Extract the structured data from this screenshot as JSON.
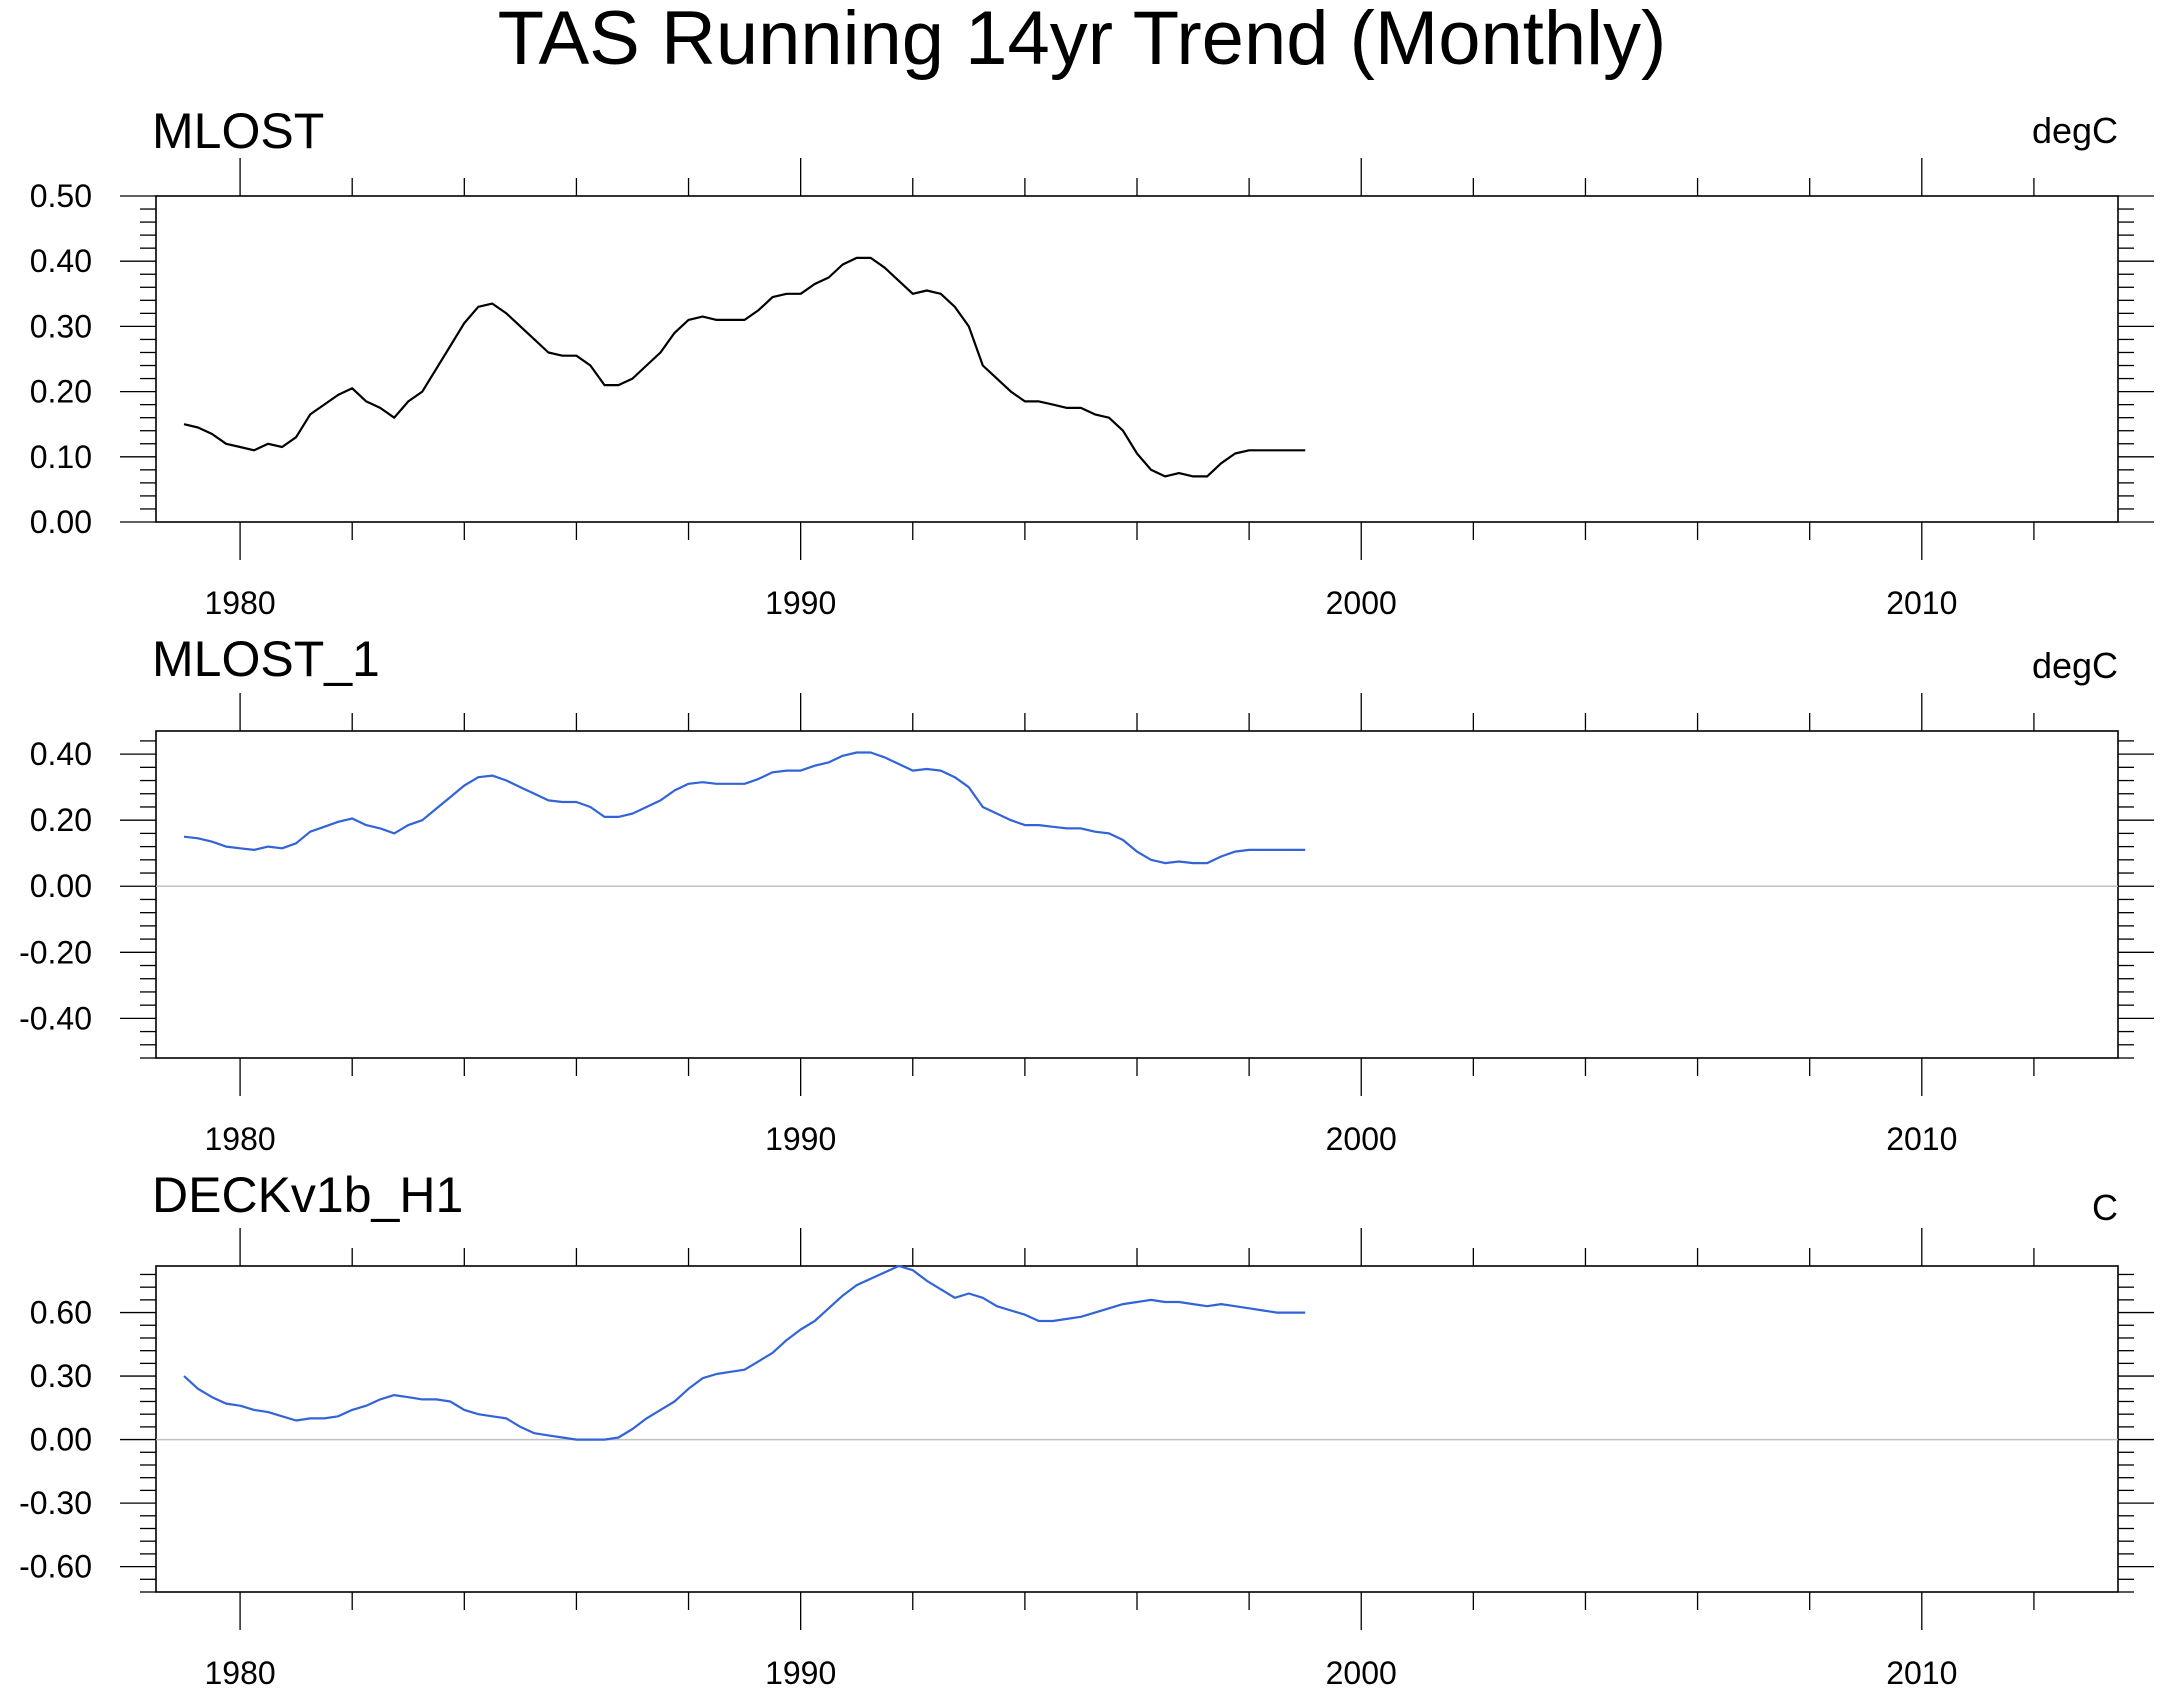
{
  "chart_data": {
    "title": "TAS Running 14yr Trend (Monthly)",
    "xlim": [
      1978.5,
      2013.5
    ],
    "x_ticks": [
      1980,
      1990,
      2000,
      2010
    ],
    "panels": [
      {
        "type": "line",
        "name": "MLOST",
        "units": "degC",
        "color": "#000000",
        "ylim": [
          0.0,
          0.5
        ],
        "y_ticks": [
          0.0,
          0.1,
          0.2,
          0.3,
          0.4,
          0.5
        ],
        "y_tick_labels": [
          "0.00",
          "0.10",
          "0.20",
          "0.30",
          "0.40",
          "0.50"
        ],
        "zero_line": false,
        "x": [
          1979.0,
          1979.25,
          1979.5,
          1979.75,
          1980.0,
          1980.25,
          1980.5,
          1980.75,
          1981.0,
          1981.25,
          1981.5,
          1981.75,
          1982.0,
          1982.25,
          1982.5,
          1982.75,
          1983.0,
          1983.25,
          1983.5,
          1983.75,
          1984.0,
          1984.25,
          1984.5,
          1984.75,
          1985.0,
          1985.25,
          1985.5,
          1985.75,
          1986.0,
          1986.25,
          1986.5,
          1986.75,
          1987.0,
          1987.25,
          1987.5,
          1987.75,
          1988.0,
          1988.25,
          1988.5,
          1988.75,
          1989.0,
          1989.25,
          1989.5,
          1989.75,
          1990.0,
          1990.25,
          1990.5,
          1990.75,
          1991.0,
          1991.25,
          1991.5,
          1991.75,
          1992.0,
          1992.25,
          1992.5,
          1992.75,
          1993.0,
          1993.25,
          1993.5,
          1993.75,
          1994.0,
          1994.25,
          1994.5,
          1994.75,
          1995.0,
          1995.25,
          1995.5,
          1995.75,
          1996.0,
          1996.25,
          1996.5,
          1996.75,
          1997.0,
          1997.25,
          1997.5,
          1997.75,
          1998.0,
          1998.25,
          1998.5,
          1998.75,
          1999.0
        ],
        "y": [
          0.15,
          0.145,
          0.135,
          0.12,
          0.115,
          0.11,
          0.12,
          0.115,
          0.13,
          0.165,
          0.18,
          0.195,
          0.205,
          0.185,
          0.175,
          0.16,
          0.185,
          0.2,
          0.235,
          0.27,
          0.305,
          0.33,
          0.335,
          0.32,
          0.3,
          0.28,
          0.26,
          0.255,
          0.255,
          0.24,
          0.21,
          0.21,
          0.22,
          0.24,
          0.26,
          0.29,
          0.31,
          0.315,
          0.31,
          0.31,
          0.31,
          0.325,
          0.345,
          0.35,
          0.35,
          0.365,
          0.375,
          0.395,
          0.405,
          0.405,
          0.39,
          0.37,
          0.35,
          0.355,
          0.35,
          0.33,
          0.3,
          0.24,
          0.22,
          0.2,
          0.185,
          0.185,
          0.18,
          0.175,
          0.175,
          0.165,
          0.16,
          0.14,
          0.105,
          0.08,
          0.07,
          0.075,
          0.07,
          0.07,
          0.09,
          0.105,
          0.11,
          0.11,
          0.11,
          0.11,
          0.11
        ]
      },
      {
        "type": "line",
        "name": "MLOST_1",
        "units": "degC",
        "color": "#3264d8",
        "ylim": [
          -0.52,
          0.47
        ],
        "y_ticks": [
          -0.4,
          -0.2,
          0.0,
          0.2,
          0.4
        ],
        "y_tick_labels": [
          "-0.40",
          "-0.20",
          "0.00",
          "0.20",
          "0.40"
        ],
        "zero_line": true,
        "x": [
          1979.0,
          1979.25,
          1979.5,
          1979.75,
          1980.0,
          1980.25,
          1980.5,
          1980.75,
          1981.0,
          1981.25,
          1981.5,
          1981.75,
          1982.0,
          1982.25,
          1982.5,
          1982.75,
          1983.0,
          1983.25,
          1983.5,
          1983.75,
          1984.0,
          1984.25,
          1984.5,
          1984.75,
          1985.0,
          1985.25,
          1985.5,
          1985.75,
          1986.0,
          1986.25,
          1986.5,
          1986.75,
          1987.0,
          1987.25,
          1987.5,
          1987.75,
          1988.0,
          1988.25,
          1988.5,
          1988.75,
          1989.0,
          1989.25,
          1989.5,
          1989.75,
          1990.0,
          1990.25,
          1990.5,
          1990.75,
          1991.0,
          1991.25,
          1991.5,
          1991.75,
          1992.0,
          1992.25,
          1992.5,
          1992.75,
          1993.0,
          1993.25,
          1993.5,
          1993.75,
          1994.0,
          1994.25,
          1994.5,
          1994.75,
          1995.0,
          1995.25,
          1995.5,
          1995.75,
          1996.0,
          1996.25,
          1996.5,
          1996.75,
          1997.0,
          1997.25,
          1997.5,
          1997.75,
          1998.0,
          1998.25,
          1998.5,
          1998.75,
          1999.0
        ],
        "y": [
          0.15,
          0.145,
          0.135,
          0.12,
          0.115,
          0.11,
          0.12,
          0.115,
          0.13,
          0.165,
          0.18,
          0.195,
          0.205,
          0.185,
          0.175,
          0.16,
          0.185,
          0.2,
          0.235,
          0.27,
          0.305,
          0.33,
          0.335,
          0.32,
          0.3,
          0.28,
          0.26,
          0.255,
          0.255,
          0.24,
          0.21,
          0.21,
          0.22,
          0.24,
          0.26,
          0.29,
          0.31,
          0.315,
          0.31,
          0.31,
          0.31,
          0.325,
          0.345,
          0.35,
          0.35,
          0.365,
          0.375,
          0.395,
          0.405,
          0.405,
          0.39,
          0.37,
          0.35,
          0.355,
          0.35,
          0.33,
          0.3,
          0.24,
          0.22,
          0.2,
          0.185,
          0.185,
          0.18,
          0.175,
          0.175,
          0.165,
          0.16,
          0.14,
          0.105,
          0.08,
          0.07,
          0.075,
          0.07,
          0.07,
          0.09,
          0.105,
          0.11,
          0.11,
          0.11,
          0.11,
          0.11
        ]
      },
      {
        "type": "line",
        "name": "DECKv1b_H1",
        "units": "C",
        "color": "#3264d8",
        "ylim": [
          -0.72,
          0.82
        ],
        "y_ticks": [
          -0.6,
          -0.3,
          0.0,
          0.3,
          0.6
        ],
        "y_tick_labels": [
          "-0.60",
          "-0.30",
          "0.00",
          "0.30",
          "0.60"
        ],
        "zero_line": true,
        "x": [
          1979.0,
          1979.25,
          1979.5,
          1979.75,
          1980.0,
          1980.25,
          1980.5,
          1980.75,
          1981.0,
          1981.25,
          1981.5,
          1981.75,
          1982.0,
          1982.25,
          1982.5,
          1982.75,
          1983.0,
          1983.25,
          1983.5,
          1983.75,
          1984.0,
          1984.25,
          1984.5,
          1984.75,
          1985.0,
          1985.25,
          1985.5,
          1985.75,
          1986.0,
          1986.25,
          1986.5,
          1986.75,
          1987.0,
          1987.25,
          1987.5,
          1987.75,
          1988.0,
          1988.25,
          1988.5,
          1988.75,
          1989.0,
          1989.25,
          1989.5,
          1989.75,
          1990.0,
          1990.25,
          1990.5,
          1990.75,
          1991.0,
          1991.25,
          1991.5,
          1991.75,
          1992.0,
          1992.25,
          1992.5,
          1992.75,
          1993.0,
          1993.25,
          1993.5,
          1993.75,
          1994.0,
          1994.25,
          1994.5,
          1994.75,
          1995.0,
          1995.25,
          1995.5,
          1995.75,
          1996.0,
          1996.25,
          1996.5,
          1996.75,
          1997.0,
          1997.25,
          1997.5,
          1997.75,
          1998.0,
          1998.25,
          1998.5,
          1998.75,
          1999.0
        ],
        "y": [
          0.3,
          0.24,
          0.2,
          0.17,
          0.16,
          0.14,
          0.13,
          0.11,
          0.09,
          0.1,
          0.1,
          0.11,
          0.14,
          0.16,
          0.19,
          0.21,
          0.2,
          0.19,
          0.19,
          0.18,
          0.14,
          0.12,
          0.11,
          0.1,
          0.06,
          0.03,
          0.02,
          0.01,
          0.0,
          0.0,
          0.0,
          0.01,
          0.05,
          0.1,
          0.14,
          0.18,
          0.24,
          0.29,
          0.31,
          0.32,
          0.33,
          0.37,
          0.41,
          0.47,
          0.52,
          0.56,
          0.62,
          0.68,
          0.73,
          0.76,
          0.79,
          0.82,
          0.8,
          0.75,
          0.71,
          0.67,
          0.69,
          0.67,
          0.63,
          0.61,
          0.59,
          0.56,
          0.56,
          0.57,
          0.58,
          0.6,
          0.62,
          0.64,
          0.65,
          0.66,
          0.65,
          0.65,
          0.64,
          0.63,
          0.64,
          0.63,
          0.62,
          0.61,
          0.6,
          0.6,
          0.6
        ]
      }
    ]
  }
}
